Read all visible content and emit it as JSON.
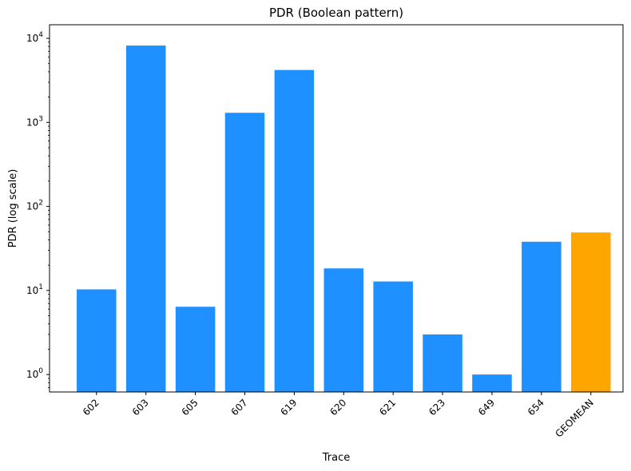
{
  "chart_data": {
    "type": "bar",
    "title": "PDR (Boolean pattern)",
    "xlabel": "Trace",
    "ylabel": "PDR (log scale)",
    "yscale": "log",
    "ylim": [
      0.62,
      14500
    ],
    "yticks": [
      {
        "value": 1,
        "base": "10",
        "exp": "0"
      },
      {
        "value": 10,
        "base": "10",
        "exp": "1"
      },
      {
        "value": 100,
        "base": "10",
        "exp": "2"
      },
      {
        "value": 1000,
        "base": "10",
        "exp": "3"
      },
      {
        "value": 10000,
        "base": "10",
        "exp": "4"
      }
    ],
    "grid": false,
    "legend": "none",
    "categories": [
      "602",
      "603",
      "605",
      "607",
      "619",
      "620",
      "621",
      "623",
      "649",
      "654",
      "GEOMEAN"
    ],
    "values": [
      10.3,
      8200,
      6.4,
      1300,
      4200,
      18.3,
      12.8,
      3.0,
      1.0,
      38,
      49
    ],
    "colors": {
      "bar": "#1e90ff",
      "highlight": "#ffa500",
      "highlight_category": "GEOMEAN"
    }
  }
}
